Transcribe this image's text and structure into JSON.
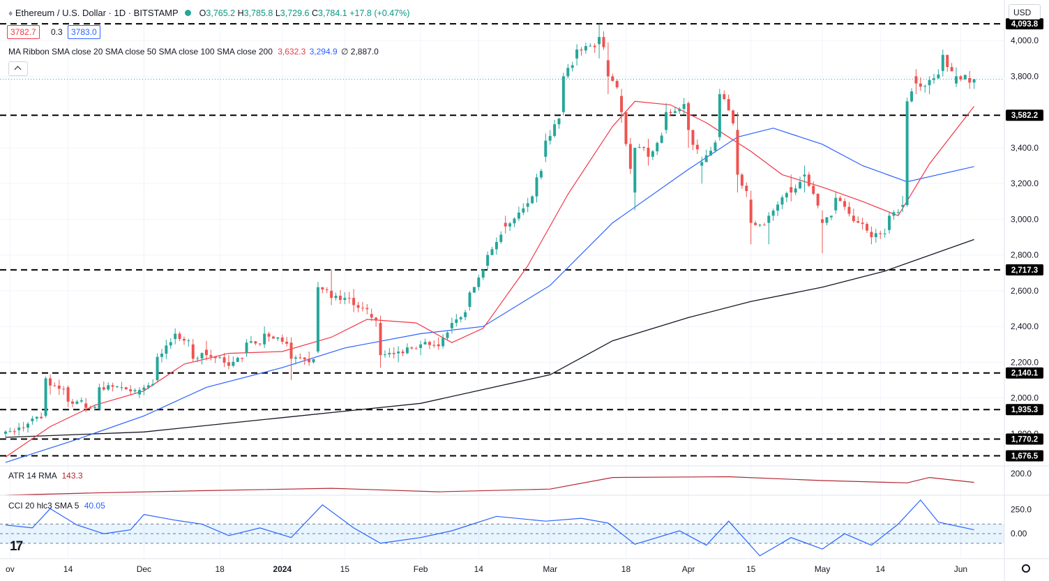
{
  "header": {
    "symbol_title": "Ethereum / U.S. Dollar · 1D · BITSTAMP",
    "ohlc": {
      "o_label": "O",
      "o": "3,765.2",
      "h_label": "H",
      "h": "3,785.8",
      "l_label": "L",
      "l": "3,729.6",
      "c_label": "C",
      "c": "3,784.1",
      "change": "+17.8 (+0.47%)"
    },
    "bid": "3782.7",
    "spread": "0.3",
    "ask": "3783.0",
    "ma_ribbon": {
      "label": "MA Ribbon SMA close 20 SMA close 50 SMA close 100 SMA close 200",
      "v20": "3,632.3",
      "v50": "3,294.9",
      "v100": "∅",
      "v200": "2,887.0"
    },
    "currency": "USD"
  },
  "colors": {
    "up": "#26a69a",
    "down": "#ef5350",
    "sma20": "#f23645",
    "sma50": "#2962ff",
    "sma200": "#131722",
    "atr": "#b22833",
    "cci": "#2962ff",
    "cci_band": "#2196f3",
    "grid": "#f0f3fa",
    "text": "#131722",
    "axis_text": "#131722"
  },
  "icons": {
    "logo": "tradingview-logo-icon",
    "collapse": "chevron-up-icon",
    "settings": "gear-icon",
    "symbol": "ethereum-icon",
    "status": "market-status-icon"
  },
  "chart_data": [
    {
      "type": "candlestick",
      "title": "Ethereum / U.S. Dollar · 1D · BITSTAMP",
      "y_ticks": [
        "4,000.0",
        "3,800.0",
        "3,400.0",
        "3,200.0",
        "3,000.0",
        "2,800.0",
        "2,600.0",
        "2,400.0",
        "2,200.0",
        "2,000.0",
        "1,800.0"
      ],
      "y_tick_values": [
        4000,
        3800,
        3400,
        3200,
        3000,
        2800,
        2600,
        2400,
        2200,
        2000,
        1800
      ],
      "x_ticks": [
        "ov",
        "14",
        "Dec",
        "18",
        "2024",
        "15",
        "Feb",
        "14",
        "Mar",
        "18",
        "Apr",
        "15",
        "May",
        "14",
        "Jun"
      ],
      "x_tick_dates": [
        "2023-11-01",
        "2023-11-14",
        "2023-12-01",
        "2023-12-18",
        "2024-01-01",
        "2024-01-15",
        "2024-02-01",
        "2024-02-14",
        "2024-03-01",
        "2024-03-18",
        "2024-04-01",
        "2024-04-15",
        "2024-05-01",
        "2024-05-14",
        "2024-06-01"
      ],
      "ylim": [
        1620,
        4110
      ],
      "date_range": [
        "2023-10-31",
        "2024-06-05"
      ],
      "horizontal_levels": [
        {
          "value": 4093.8,
          "label": "4,093.8"
        },
        {
          "value": 3582.2,
          "label": "3,582.2"
        },
        {
          "value": 2717.3,
          "label": "2,717.3"
        },
        {
          "value": 2140.1,
          "label": "2,140.1"
        },
        {
          "value": 1935.3,
          "label": "1,935.3"
        },
        {
          "value": 1770.2,
          "label": "1,770.2"
        },
        {
          "value": 1676.5,
          "label": "1,676.5"
        }
      ],
      "last_price": 3784.1,
      "ohlc_anchors": [
        [
          "2023-10-31",
          1800,
          1820,
          1770,
          1812
        ],
        [
          "2023-11-03",
          1820,
          1860,
          1790,
          1835
        ],
        [
          "2023-11-06",
          1870,
          1900,
          1850,
          1885
        ],
        [
          "2023-11-09",
          1900,
          2120,
          1890,
          2110
        ],
        [
          "2023-11-10",
          2110,
          2130,
          2020,
          2070
        ],
        [
          "2023-11-14",
          2060,
          2070,
          1950,
          1980
        ],
        [
          "2023-11-18",
          1970,
          2000,
          1920,
          1945
        ],
        [
          "2023-11-21",
          1940,
          2080,
          1930,
          2060
        ],
        [
          "2023-11-26",
          2060,
          2090,
          2040,
          2060
        ],
        [
          "2023-11-30",
          2020,
          2060,
          2000,
          2045
        ],
        [
          "2023-12-04",
          2100,
          2250,
          2090,
          2230
        ],
        [
          "2023-12-08",
          2330,
          2390,
          2300,
          2360
        ],
        [
          "2023-12-12",
          2300,
          2330,
          2200,
          2220
        ],
        [
          "2023-12-15",
          2270,
          2320,
          2210,
          2240
        ],
        [
          "2023-12-20",
          2200,
          2240,
          2160,
          2180
        ],
        [
          "2023-12-24",
          2250,
          2330,
          2230,
          2310
        ],
        [
          "2023-12-28",
          2300,
          2400,
          2280,
          2360
        ],
        [
          "2024-01-03",
          2310,
          2340,
          2100,
          2220
        ],
        [
          "2024-01-07",
          2220,
          2260,
          2180,
          2200
        ],
        [
          "2024-01-09",
          2260,
          2650,
          2250,
          2620
        ],
        [
          "2024-01-12",
          2600,
          2720,
          2520,
          2560
        ],
        [
          "2024-01-17",
          2560,
          2610,
          2480,
          2520
        ],
        [
          "2024-01-21",
          2470,
          2500,
          2430,
          2450
        ],
        [
          "2024-01-23",
          2420,
          2460,
          2170,
          2240
        ],
        [
          "2024-01-27",
          2250,
          2290,
          2200,
          2260
        ],
        [
          "2024-02-01",
          2280,
          2320,
          2240,
          2300
        ],
        [
          "2024-02-05",
          2300,
          2340,
          2270,
          2290
        ],
        [
          "2024-02-08",
          2390,
          2450,
          2360,
          2420
        ],
        [
          "2024-02-12",
          2510,
          2600,
          2490,
          2590
        ],
        [
          "2024-02-16",
          2740,
          2820,
          2720,
          2800
        ],
        [
          "2024-02-20",
          2980,
          3020,
          2920,
          2960
        ],
        [
          "2024-02-25",
          3070,
          3120,
          3040,
          3090
        ],
        [
          "2024-02-29",
          3350,
          3480,
          3320,
          3440
        ],
        [
          "2024-03-04",
          3600,
          3820,
          3580,
          3800
        ],
        [
          "2024-03-07",
          3900,
          3980,
          3860,
          3950
        ],
        [
          "2024-03-12",
          3980,
          4093.8,
          3900,
          4020
        ],
        [
          "2024-03-14",
          3890,
          3990,
          3700,
          3800
        ],
        [
          "2024-03-17",
          3690,
          3730,
          3540,
          3600
        ],
        [
          "2024-03-20",
          3150,
          3400,
          3050,
          3400
        ],
        [
          "2024-03-23",
          3400,
          3450,
          3300,
          3350
        ],
        [
          "2024-03-27",
          3500,
          3650,
          3480,
          3600
        ],
        [
          "2024-04-01",
          3650,
          3660,
          3400,
          3500
        ],
        [
          "2024-04-04",
          3300,
          3350,
          3200,
          3320
        ],
        [
          "2024-04-08",
          3460,
          3730,
          3440,
          3700
        ],
        [
          "2024-04-12",
          3500,
          3600,
          3150,
          3250
        ],
        [
          "2024-04-15",
          3110,
          3160,
          2860,
          2980
        ],
        [
          "2024-04-19",
          2980,
          3040,
          2860,
          3020
        ],
        [
          "2024-04-24",
          3180,
          3250,
          3100,
          3150
        ],
        [
          "2024-04-27",
          3240,
          3300,
          3150,
          3250
        ],
        [
          "2024-05-01",
          3000,
          3050,
          2810,
          2980
        ],
        [
          "2024-05-04",
          3050,
          3150,
          3030,
          3120
        ],
        [
          "2024-05-08",
          3020,
          3060,
          2980,
          2990
        ],
        [
          "2024-05-12",
          2930,
          2960,
          2860,
          2900
        ],
        [
          "2024-05-16",
          2940,
          3040,
          2920,
          3020
        ],
        [
          "2024-05-19",
          3070,
          3130,
          3040,
          3080
        ],
        [
          "2024-05-20",
          3080,
          3680,
          3070,
          3660
        ],
        [
          "2024-05-22",
          3800,
          3840,
          3700,
          3760
        ],
        [
          "2024-05-25",
          3750,
          3800,
          3700,
          3780
        ],
        [
          "2024-05-28",
          3830,
          3950,
          3800,
          3920
        ],
        [
          "2024-05-31",
          3760,
          3850,
          3740,
          3800
        ],
        [
          "2024-06-03",
          3790,
          3830,
          3730,
          3765
        ],
        [
          "2024-06-04",
          3765.2,
          3785.8,
          3729.6,
          3784.1
        ]
      ],
      "sma20": [
        [
          "2023-10-31",
          1670
        ],
        [
          "2023-11-10",
          1840
        ],
        [
          "2023-11-20",
          1960
        ],
        [
          "2023-12-01",
          2040
        ],
        [
          "2023-12-10",
          2190
        ],
        [
          "2023-12-20",
          2250
        ],
        [
          "2024-01-01",
          2260
        ],
        [
          "2024-01-12",
          2340
        ],
        [
          "2024-01-20",
          2440
        ],
        [
          "2024-01-31",
          2420
        ],
        [
          "2024-02-08",
          2310
        ],
        [
          "2024-02-15",
          2390
        ],
        [
          "2024-02-25",
          2740
        ],
        [
          "2024-03-05",
          3140
        ],
        [
          "2024-03-15",
          3520
        ],
        [
          "2024-03-20",
          3660
        ],
        [
          "2024-03-28",
          3640
        ],
        [
          "2024-04-05",
          3540
        ],
        [
          "2024-04-15",
          3380
        ],
        [
          "2024-04-22",
          3250
        ],
        [
          "2024-05-01",
          3180
        ],
        [
          "2024-05-10",
          3100
        ],
        [
          "2024-05-18",
          3020
        ],
        [
          "2024-05-25",
          3310
        ],
        [
          "2024-06-04",
          3632.3
        ]
      ],
      "sma50": [
        [
          "2023-10-31",
          1640
        ],
        [
          "2023-11-15",
          1760
        ],
        [
          "2023-12-01",
          1900
        ],
        [
          "2023-12-15",
          2060
        ],
        [
          "2024-01-01",
          2170
        ],
        [
          "2024-01-15",
          2280
        ],
        [
          "2024-02-01",
          2360
        ],
        [
          "2024-02-15",
          2400
        ],
        [
          "2024-03-01",
          2630
        ],
        [
          "2024-03-15",
          2980
        ],
        [
          "2024-04-01",
          3280
        ],
        [
          "2024-04-12",
          3460
        ],
        [
          "2024-04-20",
          3510
        ],
        [
          "2024-05-01",
          3420
        ],
        [
          "2024-05-10",
          3300
        ],
        [
          "2024-05-20",
          3210
        ],
        [
          "2024-06-04",
          3294.9
        ]
      ],
      "sma200": [
        [
          "2023-10-31",
          1780
        ],
        [
          "2023-12-01",
          1810
        ],
        [
          "2024-01-01",
          1890
        ],
        [
          "2024-02-01",
          1970
        ],
        [
          "2024-03-01",
          2130
        ],
        [
          "2024-03-15",
          2320
        ],
        [
          "2024-04-01",
          2450
        ],
        [
          "2024-04-15",
          2540
        ],
        [
          "2024-05-01",
          2620
        ],
        [
          "2024-05-15",
          2710
        ],
        [
          "2024-06-04",
          2887.0
        ]
      ]
    },
    {
      "type": "line",
      "title": "ATR 14 RMA",
      "last_value_label": "143.3",
      "y_ticks": [
        "200.0"
      ],
      "y_tick_values": [
        200
      ],
      "ylim": [
        60,
        250
      ],
      "series": [
        {
          "name": "ATR 14 RMA",
          "points": [
            [
              "2023-10-31",
              60
            ],
            [
              "2023-11-20",
              75
            ],
            [
              "2023-12-15",
              90
            ],
            [
              "2024-01-12",
              105
            ],
            [
              "2024-02-05",
              82
            ],
            [
              "2024-03-01",
              100
            ],
            [
              "2024-03-15",
              175
            ],
            [
              "2024-04-10",
              180
            ],
            [
              "2024-05-01",
              155
            ],
            [
              "2024-05-20",
              140
            ],
            [
              "2024-05-25",
              175
            ],
            [
              "2024-06-04",
              143.3
            ]
          ]
        }
      ]
    },
    {
      "type": "line",
      "title": "CCI 20 hlc3 SMA 5",
      "last_value_label": "40.05",
      "y_ticks": [
        "250.0",
        "0.00"
      ],
      "y_tick_values": [
        250,
        0
      ],
      "ylim": [
        -260,
        400
      ],
      "band": [
        -100,
        100
      ],
      "series": [
        {
          "name": "CCI 20 hlc3 SMA 5",
          "points": [
            [
              "2023-10-31",
              90
            ],
            [
              "2023-11-06",
              60
            ],
            [
              "2023-11-10",
              260
            ],
            [
              "2023-11-16",
              90
            ],
            [
              "2023-11-22",
              0
            ],
            [
              "2023-11-28",
              40
            ],
            [
              "2023-12-01",
              200
            ],
            [
              "2023-12-08",
              140
            ],
            [
              "2023-12-14",
              100
            ],
            [
              "2023-12-20",
              -20
            ],
            [
              "2023-12-27",
              60
            ],
            [
              "2024-01-03",
              -40
            ],
            [
              "2024-01-10",
              300
            ],
            [
              "2024-01-17",
              60
            ],
            [
              "2024-01-23",
              -100
            ],
            [
              "2024-02-01",
              -40
            ],
            [
              "2024-02-08",
              30
            ],
            [
              "2024-02-18",
              180
            ],
            [
              "2024-02-29",
              130
            ],
            [
              "2024-03-08",
              160
            ],
            [
              "2024-03-14",
              110
            ],
            [
              "2024-03-20",
              -110
            ],
            [
              "2024-03-30",
              30
            ],
            [
              "2024-04-05",
              -120
            ],
            [
              "2024-04-10",
              130
            ],
            [
              "2024-04-17",
              -230
            ],
            [
              "2024-04-24",
              -40
            ],
            [
              "2024-05-01",
              -160
            ],
            [
              "2024-05-06",
              0
            ],
            [
              "2024-05-12",
              -120
            ],
            [
              "2024-05-18",
              100
            ],
            [
              "2024-05-23",
              350
            ],
            [
              "2024-05-27",
              120
            ],
            [
              "2024-06-04",
              40.05
            ]
          ]
        }
      ]
    }
  ]
}
